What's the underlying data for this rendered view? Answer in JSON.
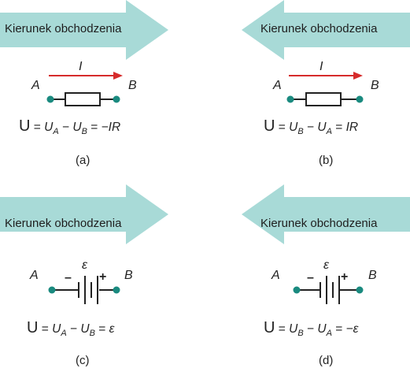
{
  "arrow_label": "Kierunek obchodzenia",
  "colors": {
    "arrow": "#a8dad7",
    "current_arrow": "#d62b2b",
    "terminal": "#1a8a7f",
    "wire": "#222222"
  },
  "panels": [
    {
      "id": "a",
      "direction": "right",
      "current_label": "I",
      "node_left": "A",
      "node_right": "B",
      "element": "resistor",
      "equation": {
        "U": "U",
        "eq1": "=",
        "t1": "U",
        "s1": "A",
        "op": "−",
        "t2": "U",
        "s2": "B",
        "eq2": "=",
        "rhs": "−IR"
      },
      "caption": "(a)"
    },
    {
      "id": "b",
      "direction": "left",
      "current_label": "I",
      "node_left": "A",
      "node_right": "B",
      "element": "resistor",
      "equation": {
        "U": "U",
        "eq1": "=",
        "t1": "U",
        "s1": "B",
        "op": "−",
        "t2": "U",
        "s2": "A",
        "eq2": "=",
        "rhs": "IR"
      },
      "caption": "(b)"
    },
    {
      "id": "c",
      "direction": "right",
      "emf_label": "ε",
      "minus_sign": "–",
      "plus_sign": "+",
      "node_left": "A",
      "node_right": "B",
      "element": "battery",
      "equation": {
        "U": "U",
        "eq1": "=",
        "t1": "U",
        "s1": "A",
        "op": "−",
        "t2": "U",
        "s2": "B",
        "eq2": "=",
        "rhs": "ε"
      },
      "caption": "(c)"
    },
    {
      "id": "d",
      "direction": "left",
      "emf_label": "ε",
      "minus_sign": "–",
      "plus_sign": "+",
      "node_left": "A",
      "node_right": "B",
      "element": "battery",
      "equation": {
        "U": "U",
        "eq1": "=",
        "t1": "U",
        "s1": "B",
        "op": "−",
        "t2": "U",
        "s2": "A",
        "eq2": "=",
        "rhs": "−ε"
      },
      "caption": "(d)"
    }
  ]
}
